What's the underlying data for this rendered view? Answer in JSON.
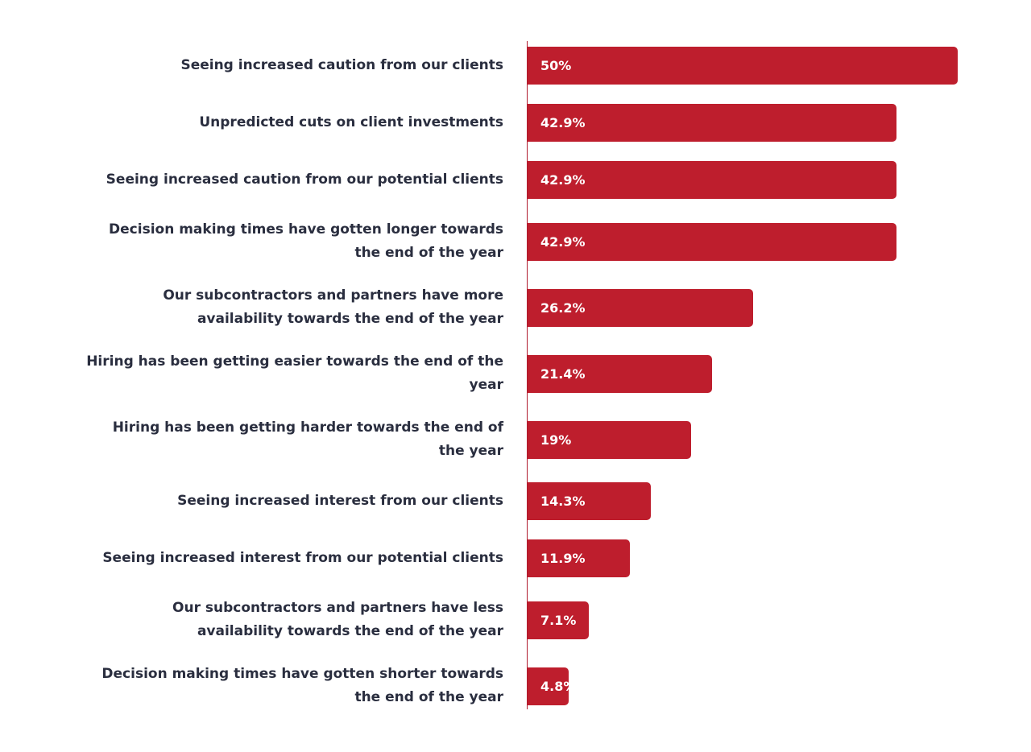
{
  "chart_data": {
    "type": "bar",
    "orientation": "horizontal",
    "categories": [
      "Seeing increased caution from our clients",
      "Unpredicted cuts on client investments",
      "Seeing increased caution from our potential clients",
      "Decision making times have gotten longer towards the end of the year",
      "Our subcontractors and partners have more availability towards the end of the year",
      "Hiring has been getting easier towards the end of the year",
      "Hiring has been getting harder towards the end of the year",
      "Seeing increased interest from our clients",
      "Seeing increased interest from our potential clients",
      "Our subcontractors and partners have less availability towards the end of the year",
      "Decision making times have gotten shorter towards the end of the year"
    ],
    "values": [
      50,
      42.9,
      42.9,
      42.9,
      26.2,
      21.4,
      19,
      14.3,
      11.9,
      7.1,
      4.8
    ],
    "value_labels": [
      "50%",
      "42.9%",
      "42.9%",
      "42.9%",
      "26.2%",
      "21.4%",
      "19%",
      "14.3%",
      "11.9%",
      "7.1%",
      "4.8%"
    ],
    "xlim": [
      0,
      50
    ],
    "grid": false,
    "bar_color": "#be1e2d",
    "label_color": "#2a2e3f"
  }
}
